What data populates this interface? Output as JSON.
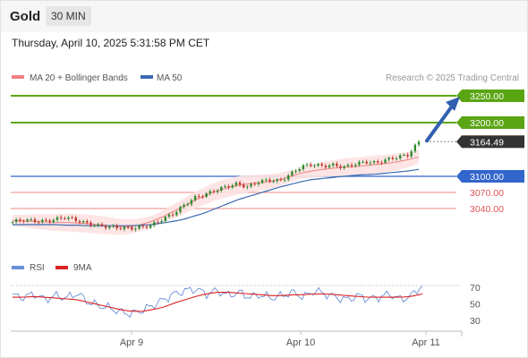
{
  "header": {
    "instrument": "Gold",
    "timeframe": "30 MIN",
    "datetime": "Thursday, April 10, 2025 5:31:58 PM CET"
  },
  "legend": {
    "ma20": "MA 20 + Bollinger Bands",
    "ma50": "MA 50",
    "credit": "Research © 2025 Trading Central",
    "rsi": "RSI",
    "rsi_ma": "9MA"
  },
  "colors": {
    "green": "#5aa514",
    "blue": "#3366cc",
    "red": "#e05555",
    "price_box": "#333333",
    "ma20": "#f08080",
    "ma50": "#3a6ab0",
    "band": "#fde2e2",
    "candle_up": "#2e8b2e",
    "candle_down": "#c0392b"
  },
  "chart_data": [
    {
      "type": "candlestick",
      "x_axis": {
        "ticks": [
          "Apr 9",
          "Apr 10",
          "Apr 11"
        ]
      },
      "levels": [
        {
          "label": "3250.00",
          "value": 3250,
          "style": "green-line"
        },
        {
          "label": "3200.00",
          "value": 3200,
          "style": "green-line"
        },
        {
          "label": "3164.49",
          "value": 3164.49,
          "style": "last-price"
        },
        {
          "label": "3100.00",
          "value": 3100,
          "style": "blue-line"
        },
        {
          "label": "3070.00",
          "value": 3070,
          "style": "red-line"
        },
        {
          "label": "3040.00",
          "value": 3040,
          "style": "red-line"
        }
      ],
      "series": [
        {
          "name": "MA 20 + Bollinger Bands"
        },
        {
          "name": "MA 50"
        }
      ],
      "close_path": [
        3015,
        3019,
        3017,
        3016,
        3020,
        3024,
        3018,
        3012,
        3008,
        3006,
        3004,
        3003,
        3005,
        3009,
        3020,
        3030,
        3045,
        3060,
        3066,
        3074,
        3081,
        3086,
        3080,
        3090,
        3093,
        3091,
        3104,
        3118,
        3122,
        3119,
        3121,
        3117,
        3123,
        3127,
        3125,
        3131,
        3136,
        3140,
        3164.49
      ],
      "ma20_path": [
        3018,
        3017,
        3016,
        3015,
        3014,
        3014,
        3013,
        3012,
        3010,
        3008,
        3006,
        3006,
        3010,
        3016,
        3024,
        3034,
        3044,
        3055,
        3064,
        3072,
        3078,
        3083,
        3086,
        3088,
        3090,
        3094,
        3100,
        3106,
        3110,
        3113,
        3115,
        3117,
        3118,
        3120,
        3122,
        3124,
        3127,
        3131,
        3136
      ],
      "ma50_path": [
        3010,
        3010,
        3010,
        3010,
        3010,
        3009,
        3009,
        3008,
        3008,
        3008,
        3008,
        3008,
        3009,
        3010,
        3013,
        3016,
        3020,
        3026,
        3032,
        3040,
        3048,
        3056,
        3062,
        3068,
        3074,
        3080,
        3085,
        3090,
        3094,
        3096,
        3098,
        3100,
        3102,
        3103,
        3104,
        3106,
        3108,
        3110,
        3113
      ],
      "forecast_target": 3250
    },
    {
      "type": "line",
      "panel": "RSI",
      "y_ticks": [
        70,
        50,
        30
      ],
      "series": [
        {
          "name": "RSI",
          "values": [
            60,
            58,
            62,
            55,
            60,
            57,
            63,
            52,
            48,
            45,
            40,
            38,
            42,
            48,
            55,
            62,
            66,
            68,
            62,
            66,
            60,
            64,
            58,
            61,
            57,
            60,
            64,
            58,
            66,
            62,
            58,
            55,
            60,
            56,
            58,
            62,
            55,
            60,
            73
          ]
        },
        {
          "name": "9MA",
          "values": [
            58,
            58,
            59,
            58,
            57,
            56,
            55,
            52,
            49,
            46,
            43,
            41,
            41,
            43,
            46,
            51,
            55,
            59,
            62,
            64,
            64,
            63,
            62,
            61,
            60,
            60,
            61,
            61,
            62,
            62,
            61,
            60,
            59,
            58,
            58,
            58,
            58,
            59,
            62
          ]
        }
      ]
    }
  ]
}
